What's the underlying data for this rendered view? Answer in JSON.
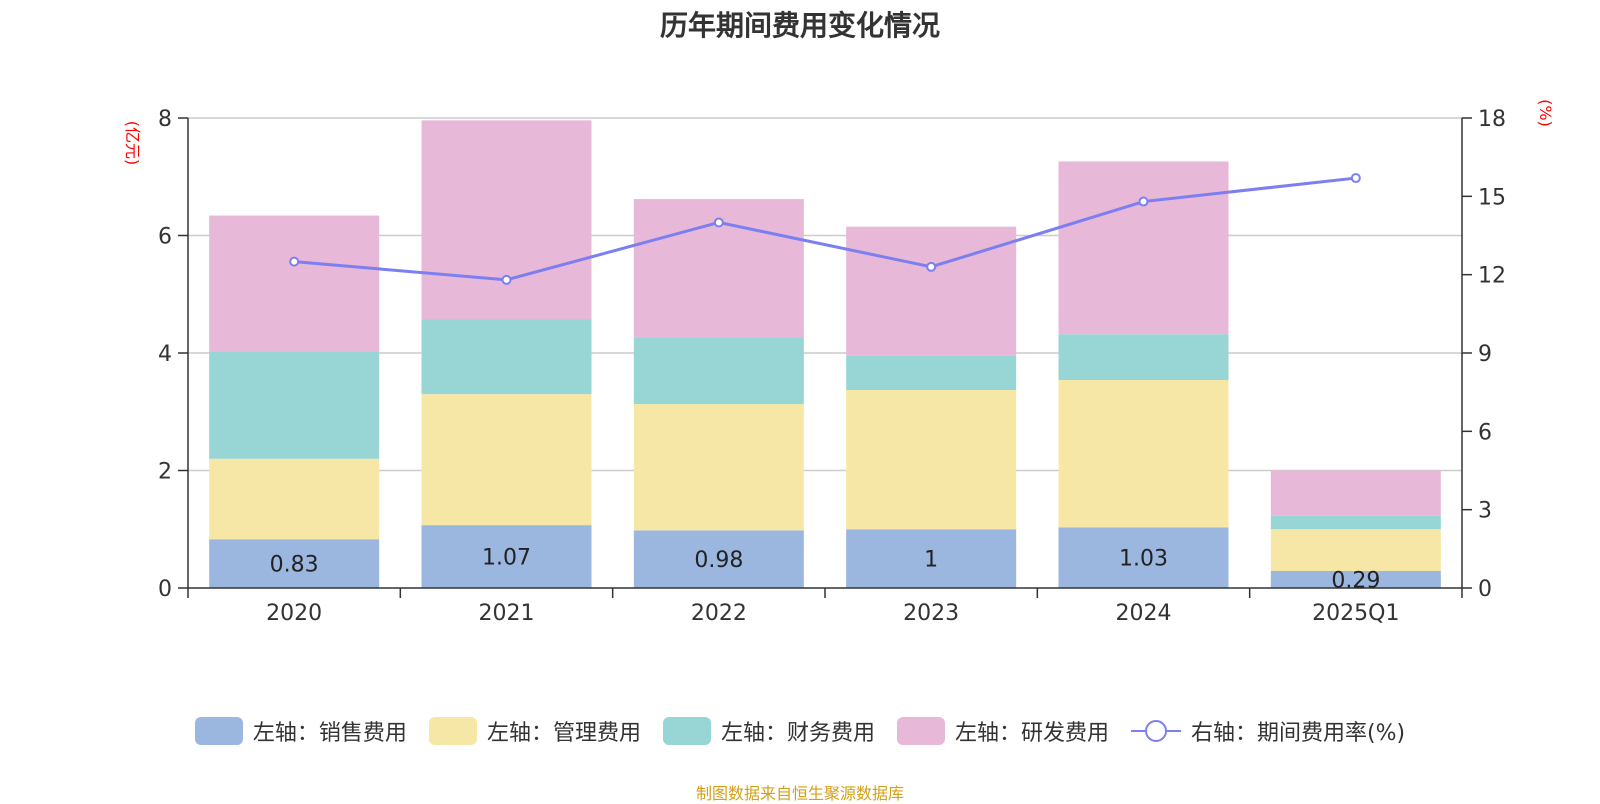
{
  "chart_data": {
    "type": "bar",
    "title": "历年期间费用变化情况",
    "categories": [
      "2020",
      "2021",
      "2022",
      "2023",
      "2024",
      "2025Q1"
    ],
    "series": [
      {
        "name": "左轴：销售费用",
        "axis": "left",
        "kind": "bar",
        "color": "#9bb7e0",
        "values": [
          0.83,
          1.07,
          0.98,
          1.0,
          1.03,
          0.29
        ]
      },
      {
        "name": "左轴：管理费用",
        "axis": "left",
        "kind": "bar",
        "color": "#f7e7a6",
        "values": [
          1.37,
          2.23,
          2.15,
          2.37,
          2.51,
          0.71
        ]
      },
      {
        "name": "左轴：财务费用",
        "axis": "left",
        "kind": "bar",
        "color": "#98d5d5",
        "values": [
          1.83,
          1.27,
          1.14,
          0.58,
          0.78,
          0.23
        ]
      },
      {
        "name": "左轴：研发费用",
        "axis": "left",
        "kind": "bar",
        "color": "#e8b8d9",
        "values": [
          2.31,
          3.39,
          2.35,
          2.2,
          2.94,
          0.77
        ]
      },
      {
        "name": "右轴：期间费用率(%)",
        "axis": "right",
        "kind": "line",
        "color": "#7b7ff0",
        "values": [
          12.5,
          11.8,
          14.0,
          12.3,
          14.8,
          15.7
        ]
      }
    ],
    "data_labels": [
      "0.83",
      "1.07",
      "0.98",
      "1",
      "1.03",
      "0.29"
    ],
    "y_left": {
      "unit": "(亿元)",
      "min": 0,
      "max": 8,
      "ticks": [
        "0",
        "2",
        "4",
        "6",
        "8"
      ]
    },
    "y_right": {
      "unit": "(%)",
      "min": 0,
      "max": 18,
      "ticks": [
        "0",
        "3",
        "6",
        "9",
        "12",
        "15",
        "18"
      ]
    },
    "grid": true,
    "legend_position": "bottom"
  },
  "source": "制图数据来自恒生聚源数据库"
}
